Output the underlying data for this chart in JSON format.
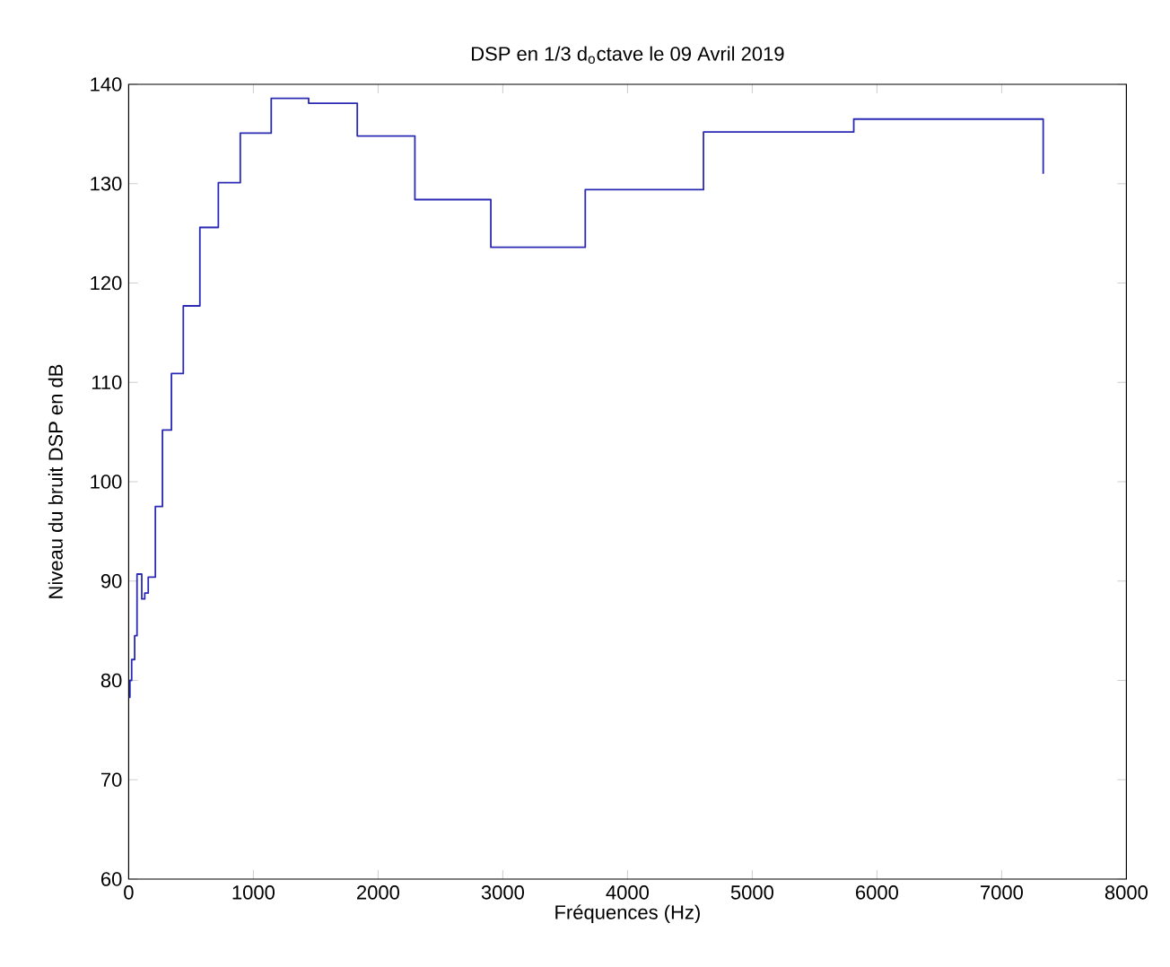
{
  "chart_data": {
    "type": "step",
    "title": "DSP en 1/3 d$_{o}$ctave le 09  Avril 2019",
    "xlabel": "Fréquences (Hz)",
    "ylabel": "Niveau du bruit DSP en dB",
    "x": [
      0,
      10,
      24,
      48,
      67,
      105,
      129,
      157,
      214,
      271,
      343,
      438,
      571,
      719,
      895,
      1143,
      1443,
      1833,
      2295,
      2904,
      3661,
      4609,
      5814,
      7333
    ],
    "series": [
      {
        "color": "#2a2ab4",
        "values": [
          78.3,
          80,
          82.1,
          84.5,
          90.7,
          88.2,
          88.8,
          90.4,
          97.5,
          105.2,
          110.9,
          117.7,
          125.6,
          130.1,
          135.1,
          138.6,
          138.1,
          134.8,
          128.4,
          123.6,
          129.4,
          135.2,
          136.5,
          131.0
        ]
      }
    ],
    "xlim": [
      0,
      8000
    ],
    "ylim": [
      60,
      140
    ],
    "xticks": [
      0,
      1000,
      2000,
      3000,
      4000,
      5000,
      6000,
      7000,
      8000
    ],
    "yticks": [
      60,
      70,
      80,
      90,
      100,
      110,
      120,
      130,
      140
    ],
    "marker": "none",
    "line_style": "solid"
  }
}
